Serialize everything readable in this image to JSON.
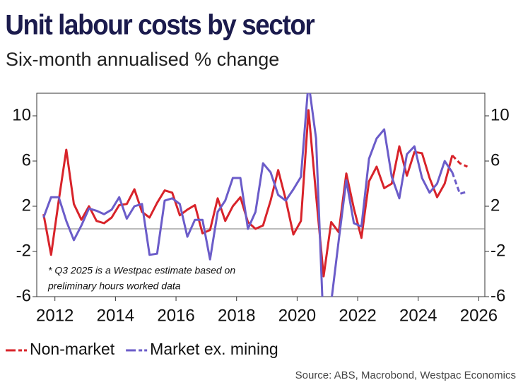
{
  "chart_data": {
    "type": "line",
    "title": "Unit labour costs by sector",
    "subtitle": "Six-month annualised % change",
    "annotation": [
      "* Q3 2025 is a Westpac estimate based on",
      "preliminary hours worked data"
    ],
    "source": "Source: ABS, Macrobond, Westpac Economics",
    "x": [
      2011.625,
      2011.875,
      2012.125,
      2012.375,
      2012.625,
      2012.875,
      2013.125,
      2013.375,
      2013.625,
      2013.875,
      2014.125,
      2014.375,
      2014.625,
      2014.875,
      2015.125,
      2015.375,
      2015.625,
      2015.875,
      2016.125,
      2016.375,
      2016.625,
      2016.875,
      2017.125,
      2017.375,
      2017.625,
      2017.875,
      2018.125,
      2018.375,
      2018.625,
      2018.875,
      2019.125,
      2019.375,
      2019.625,
      2019.875,
      2020.125,
      2020.375,
      2020.625,
      2020.875,
      2021.125,
      2021.375,
      2021.625,
      2021.875,
      2022.125,
      2022.375,
      2022.625,
      2022.875,
      2023.125,
      2023.375,
      2023.625,
      2023.875,
      2024.125,
      2024.375,
      2024.625,
      2024.875,
      2025.125,
      2025.375,
      2025.625
    ],
    "series": [
      {
        "name": "Non-market",
        "color": "#d8232a",
        "dashed_last_segments": 2,
        "values": [
          1.3,
          -2.3,
          2.5,
          7.0,
          2.2,
          0.8,
          2.0,
          0.7,
          0.5,
          1.0,
          2.1,
          2.2,
          3.5,
          1.5,
          1.0,
          2.3,
          3.4,
          3.2,
          1.2,
          1.7,
          2.1,
          -0.4,
          -0.1,
          2.7,
          0.7,
          2.0,
          2.8,
          0.6,
          0.0,
          0.3,
          2.5,
          5.2,
          2.6,
          -0.5,
          0.7,
          10.5,
          3.0,
          -4.2,
          0.6,
          -0.3,
          4.9,
          1.8,
          -0.8,
          4.2,
          5.5,
          3.6,
          4.0,
          7.3,
          4.7,
          6.8,
          6.7,
          4.5,
          2.8,
          4.0,
          6.5,
          5.8,
          5.5
        ]
      },
      {
        "name": "Market ex. mining",
        "color": "#6b5cc9",
        "dashed_last_segments": 2,
        "values": [
          1.0,
          2.8,
          2.8,
          0.7,
          -1.0,
          0.3,
          1.8,
          1.6,
          1.3,
          1.7,
          2.8,
          0.9,
          2.0,
          2.2,
          -2.3,
          -2.2,
          2.5,
          2.7,
          2.2,
          -0.7,
          0.8,
          0.8,
          -2.7,
          1.5,
          2.5,
          4.5,
          4.5,
          0.0,
          1.5,
          5.8,
          5.0,
          3.0,
          2.5,
          3.5,
          4.6,
          13.0,
          8.0,
          -9.0,
          -6.5,
          -1.0,
          4.3,
          0.5,
          0.2,
          6.2,
          8.0,
          8.8,
          4.6,
          2.7,
          6.6,
          7.3,
          4.5,
          3.2,
          4.0,
          6.0,
          5.0,
          3.1,
          3.3
        ]
      }
    ],
    "xlim": [
      2011.4,
      2026.2
    ],
    "xticks": [
      2012,
      2014,
      2016,
      2018,
      2020,
      2022,
      2024,
      2026
    ],
    "ylim": [
      -6,
      12
    ],
    "yticks": [
      -6,
      -2,
      2,
      6,
      10
    ],
    "zero_line": true
  }
}
